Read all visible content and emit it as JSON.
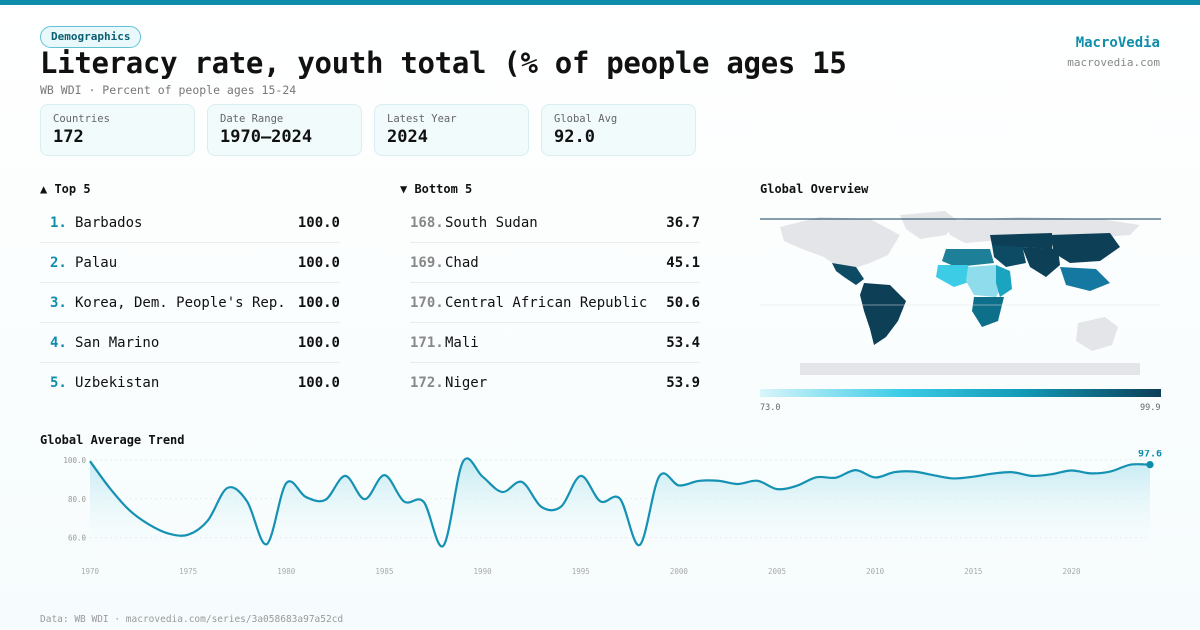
{
  "header": {
    "badge": "Demographics",
    "title": "Literacy rate, youth total (% of people ages 15-",
    "subtitle": "WB WDI · Percent of people ages 15-24",
    "brand": "MacroVedia",
    "brand_url": "macrovedia.com"
  },
  "stats": [
    {
      "label": "Countries",
      "value": "172"
    },
    {
      "label": "Date Range",
      "value": "1970–2024"
    },
    {
      "label": "Latest Year",
      "value": "2024"
    },
    {
      "label": "Global Avg",
      "value": "92.0"
    }
  ],
  "top": {
    "title": "▲ Top 5",
    "items": [
      {
        "rank": "1.",
        "name": "Barbados",
        "value": "100.0"
      },
      {
        "rank": "2.",
        "name": "Palau",
        "value": "100.0"
      },
      {
        "rank": "3.",
        "name": "Korea, Dem. People's Rep.",
        "value": "100.0"
      },
      {
        "rank": "4.",
        "name": "San Marino",
        "value": "100.0"
      },
      {
        "rank": "5.",
        "name": "Uzbekistan",
        "value": "100.0"
      }
    ]
  },
  "bottom": {
    "title": "▼ Bottom 5",
    "items": [
      {
        "rank": "168.",
        "name": "South Sudan",
        "value": "36.7"
      },
      {
        "rank": "169.",
        "name": "Chad",
        "value": "45.1"
      },
      {
        "rank": "170.",
        "name": "Central African Republic",
        "value": "50.6"
      },
      {
        "rank": "171.",
        "name": "Mali",
        "value": "53.4"
      },
      {
        "rank": "172.",
        "name": "Niger",
        "value": "53.9"
      }
    ]
  },
  "map": {
    "title": "Global Overview",
    "legend_min": "73.0",
    "legend_max": "99.9",
    "colors": {
      "low": "#d8f5fb",
      "mid": "#3ccce6",
      "high": "#0d3f57",
      "nodata": "#e3e5e8"
    }
  },
  "trend": {
    "title": "Global Average Trend",
    "last_label": "97.6"
  },
  "footer": "Data: WB WDI · macrovedia.com/series/3a058683a97a52cd",
  "colors": {
    "accent": "#0e8eaa",
    "line": "#1591b3",
    "fill": "#cdeef4"
  },
  "chart_data": {
    "type": "area",
    "title": "Global Average Trend",
    "xlim": [
      1970,
      2024
    ],
    "ylim": [
      50,
      100
    ],
    "yticks": [
      60,
      80,
      100
    ],
    "ytick_labels": [
      "60.0",
      "80.0",
      "100.0"
    ],
    "xticks": [
      1970,
      1975,
      1980,
      1985,
      1990,
      1995,
      2000,
      2005,
      2010,
      2015,
      2020
    ],
    "grid": true,
    "x": [
      1970,
      1971,
      1972,
      1973,
      1974,
      1975,
      1976,
      1977,
      1978,
      1979,
      1980,
      1981,
      1982,
      1983,
      1984,
      1985,
      1986,
      1987,
      1988,
      1989,
      1990,
      1991,
      1992,
      1993,
      1994,
      1995,
      1996,
      1997,
      1998,
      1999,
      2000,
      2001,
      2002,
      2003,
      2004,
      2005,
      2006,
      2007,
      2008,
      2009,
      2010,
      2011,
      2012,
      2013,
      2014,
      2015,
      2016,
      2017,
      2018,
      2019,
      2020,
      2021,
      2022,
      2023,
      2024
    ],
    "y": [
      99.4,
      85.6,
      74.2,
      66.8,
      62.1,
      61.5,
      68.8,
      85.6,
      78.7,
      56.6,
      88.1,
      80.9,
      79.5,
      91.8,
      79.8,
      92.2,
      78.6,
      78.4,
      55.8,
      99.1,
      91.4,
      83.5,
      88.7,
      75.8,
      76.0,
      91.8,
      78.7,
      80.0,
      56.2,
      91.6,
      86.9,
      89.2,
      89.3,
      87.6,
      89.3,
      85.0,
      86.7,
      91.1,
      90.9,
      94.8,
      91.0,
      93.8,
      94.0,
      92.1,
      90.5,
      91.4,
      93.0,
      93.7,
      91.8,
      92.7,
      94.6,
      93.1,
      94.1,
      97.6,
      97.6
    ],
    "last_value": 97.6
  }
}
